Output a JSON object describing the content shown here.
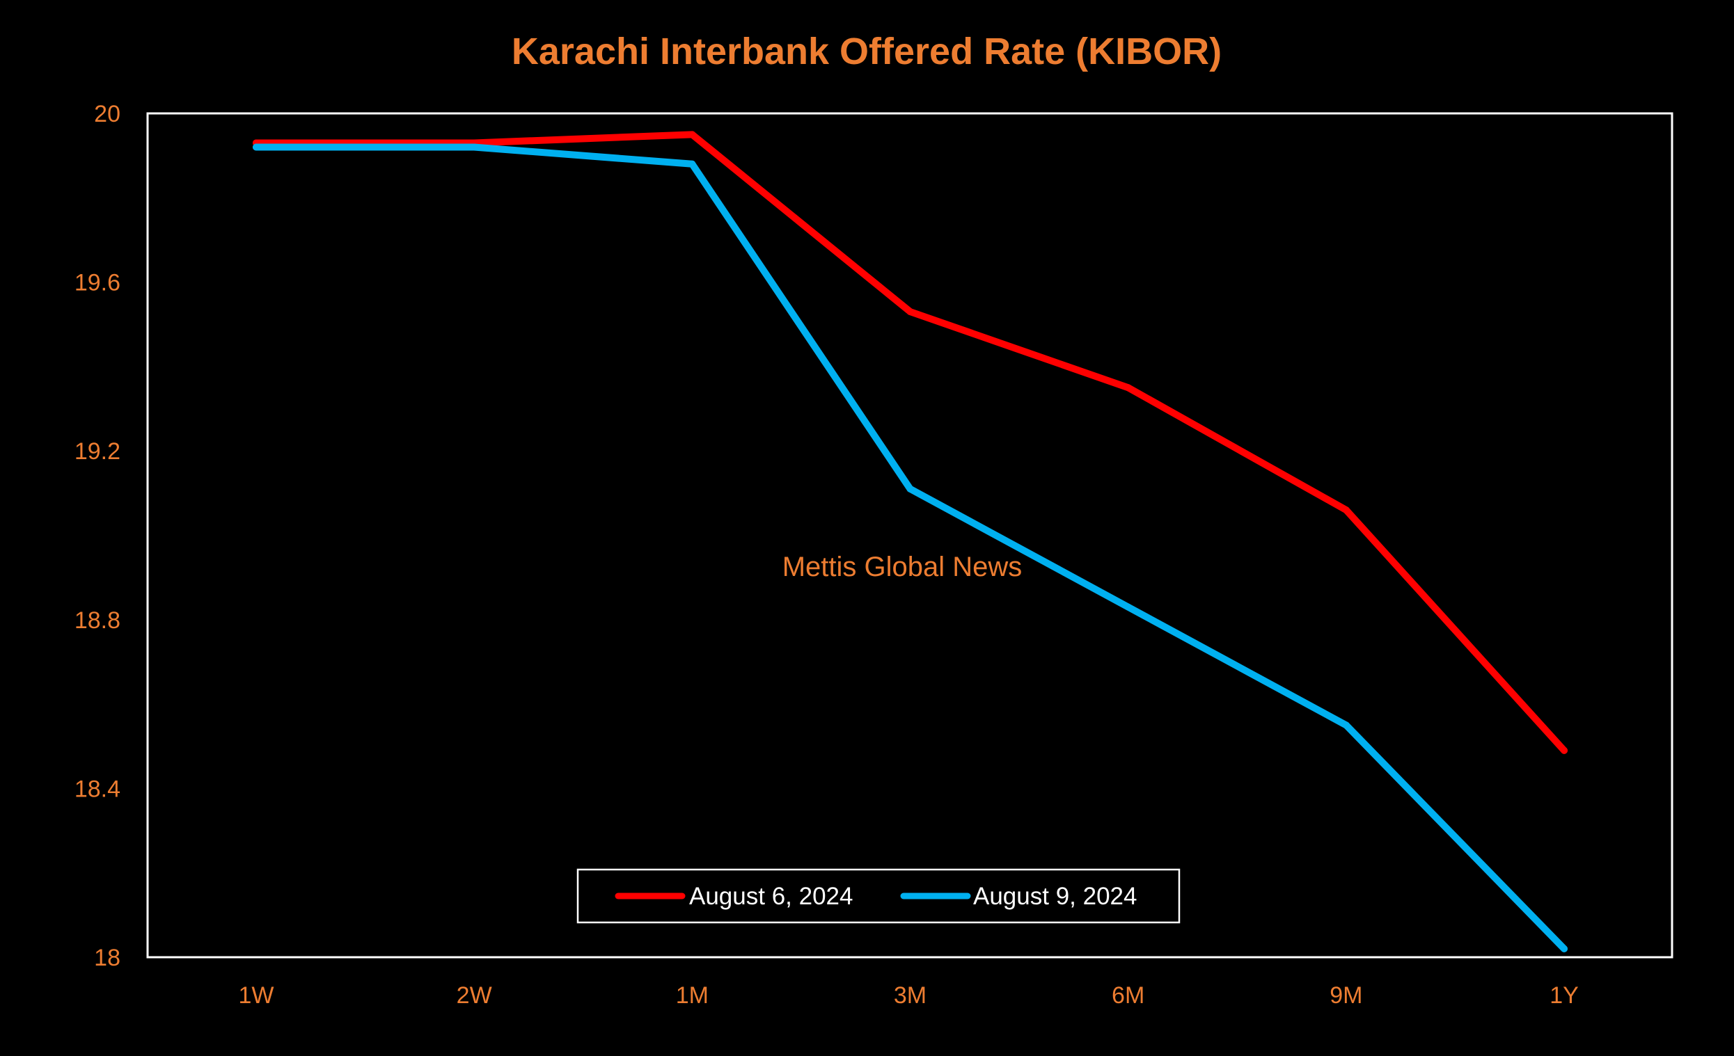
{
  "colors": {
    "background": "#000000",
    "text_accent": "#ED7D31",
    "frame": "#ffffff"
  },
  "chart_data": {
    "type": "line",
    "title": "Karachi Interbank Offered Rate (KIBOR)",
    "xlabel": "",
    "ylabel": "",
    "categories": [
      "1W",
      "2W",
      "1M",
      "3M",
      "6M",
      "9M",
      "1Y"
    ],
    "ylim": [
      18,
      20
    ],
    "yticks": [
      18,
      18.4,
      18.8,
      19.2,
      19.6,
      20
    ],
    "ytick_labels": [
      "18",
      "18.4",
      "18.8",
      "19.2",
      "19.6",
      "20"
    ],
    "grid": false,
    "legend_position": "bottom-center",
    "series": [
      {
        "name": "August 6, 2024",
        "color": "#FF0000",
        "values": [
          19.93,
          19.93,
          19.95,
          19.53,
          19.35,
          19.06,
          18.49
        ]
      },
      {
        "name": "August 9, 2024",
        "color": "#00B0F0",
        "values": [
          19.92,
          19.92,
          19.88,
          19.11,
          18.83,
          18.55,
          18.02
        ]
      }
    ],
    "annotation": "Mettis Global News"
  }
}
